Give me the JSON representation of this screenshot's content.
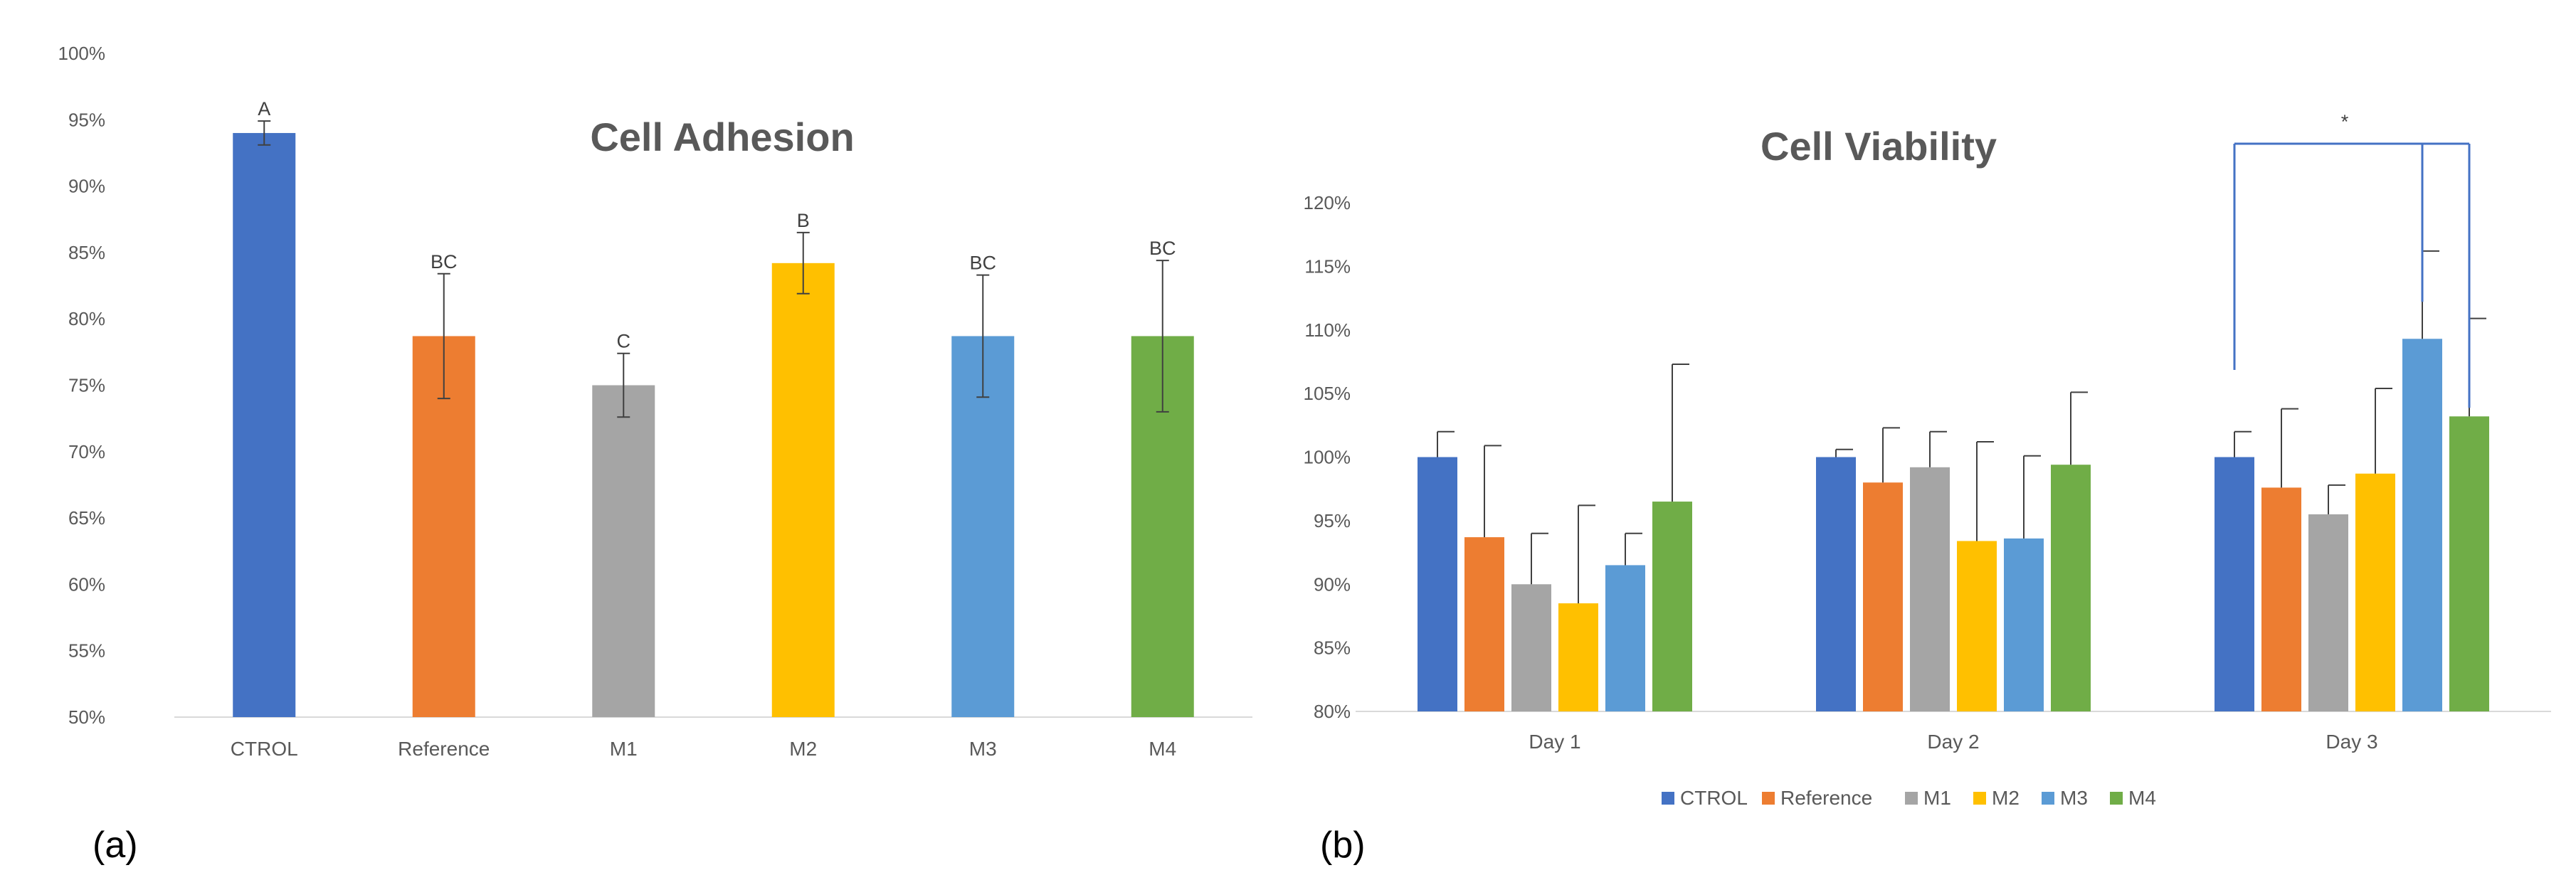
{
  "chart_data": [
    {
      "type": "bar",
      "panel_label": "(a)",
      "title": "Cell Adhesion",
      "xlabel": "",
      "ylabel": "",
      "ylim": [
        50,
        100
      ],
      "yticks": [
        50,
        55,
        60,
        65,
        70,
        75,
        80,
        85,
        90,
        95,
        100
      ],
      "tick_format": "percent",
      "categories": [
        "CTROL",
        "Reference",
        "M1",
        "M2",
        "M3",
        "M4"
      ],
      "values": [
        94,
        78.7,
        75,
        84.2,
        78.7,
        78.7
      ],
      "errors": [
        0.9,
        4.7,
        2.4,
        2.3,
        4.6,
        5.7
      ],
      "labels": [
        "A",
        "BC",
        "C",
        "B",
        "BC",
        "BC"
      ],
      "colors": [
        "#4472c4",
        "#ed7d31",
        "#a5a5a5",
        "#ffc000",
        "#5b9bd5",
        "#70ad47"
      ],
      "grid": false
    },
    {
      "type": "bar",
      "panel_label": "(b)",
      "title": "Cell Viability",
      "xlabel": "",
      "ylabel": "",
      "ylim": [
        80,
        120
      ],
      "yticks": [
        80,
        85,
        90,
        95,
        100,
        105,
        110,
        115,
        120
      ],
      "tick_format": "percent",
      "categories": [
        "Day 1",
        "Day 2",
        "Day 3"
      ],
      "series": [
        {
          "name": "CTROL",
          "color": "#4472c4",
          "values": [
            100,
            100,
            100
          ],
          "errors": [
            2,
            0.6,
            2
          ]
        },
        {
          "name": "Reference",
          "color": "#ed7d31",
          "values": [
            93.7,
            98,
            97.6
          ],
          "errors": [
            7.2,
            4.3,
            6.2
          ]
        },
        {
          "name": "M1",
          "color": "#a5a5a5",
          "values": [
            90,
            99.2,
            95.5
          ],
          "errors": [
            4,
            2.8,
            2.3
          ]
        },
        {
          "name": "M2",
          "color": "#ffc000",
          "values": [
            88.5,
            93.4,
            98.7
          ],
          "errors": [
            7.7,
            7.8,
            6.7
          ]
        },
        {
          "name": "M3",
          "color": "#5b9bd5",
          "values": [
            91.5,
            93.6,
            109.3
          ],
          "errors": [
            2.5,
            6.5,
            6.9
          ]
        },
        {
          "name": "M4",
          "color": "#70ad47",
          "values": [
            96.5,
            99.4,
            103.2
          ],
          "errors": [
            10.8,
            5.7,
            7.7
          ]
        }
      ],
      "significance": {
        "label": "*",
        "day": "Day 3",
        "from_series": "CTROL",
        "to_series": [
          "M3",
          "M4"
        ]
      },
      "legend_position": "bottom",
      "grid": false
    }
  ]
}
